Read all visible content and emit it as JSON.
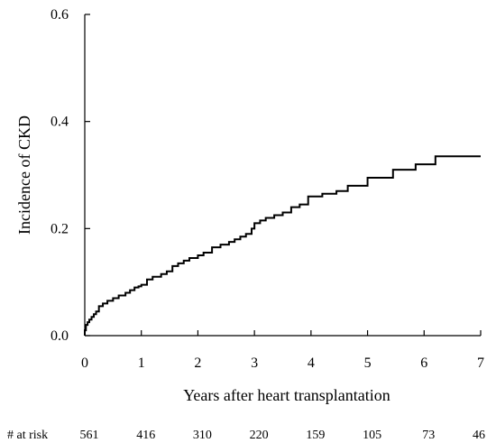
{
  "chart_data": {
    "type": "line",
    "step": true,
    "title": "",
    "xlabel": "Years after heart transplantation",
    "ylabel": "Incidence of CKD",
    "xlim": [
      0,
      7
    ],
    "ylim": [
      0,
      0.6
    ],
    "x_ticks": [
      0,
      1,
      2,
      3,
      4,
      5,
      6,
      7
    ],
    "x_tick_labels": [
      "0",
      "1",
      "2",
      "3",
      "4",
      "5",
      "6",
      "7"
    ],
    "y_ticks": [
      0,
      0.2,
      0.4,
      0.6
    ],
    "y_tick_labels": [
      "0.0",
      "0.2",
      "0.4",
      "0.6"
    ],
    "grid": false,
    "legend": "none",
    "series": [
      {
        "x": [
          0,
          0.02,
          0.05,
          0.08,
          0.12,
          0.16,
          0.2,
          0.25,
          0.32,
          0.4,
          0.5,
          0.6,
          0.72,
          0.8,
          0.88,
          0.95,
          1.0,
          1.1,
          1.2,
          1.35,
          1.45,
          1.55,
          1.65,
          1.75,
          1.85,
          2.0,
          2.1,
          2.25,
          2.4,
          2.55,
          2.65,
          2.75,
          2.85,
          2.95,
          3.0,
          3.1,
          3.2,
          3.35,
          3.5,
          3.65,
          3.8,
          3.95,
          4.2,
          4.45,
          4.65,
          5.0,
          5.45,
          5.85,
          6.2,
          7.0
        ],
        "y": [
          0.01,
          0.02,
          0.025,
          0.03,
          0.035,
          0.04,
          0.045,
          0.055,
          0.06,
          0.065,
          0.07,
          0.075,
          0.08,
          0.085,
          0.09,
          0.092,
          0.095,
          0.105,
          0.11,
          0.115,
          0.12,
          0.13,
          0.135,
          0.14,
          0.145,
          0.15,
          0.155,
          0.165,
          0.17,
          0.175,
          0.18,
          0.185,
          0.19,
          0.2,
          0.21,
          0.215,
          0.22,
          0.225,
          0.23,
          0.24,
          0.245,
          0.26,
          0.265,
          0.27,
          0.28,
          0.295,
          0.31,
          0.32,
          0.335,
          0.335
        ]
      }
    ],
    "at_risk": {
      "label": "# at risk",
      "values": [
        "561",
        "416",
        "310",
        "220",
        "159",
        "105",
        "73",
        "46"
      ]
    }
  }
}
